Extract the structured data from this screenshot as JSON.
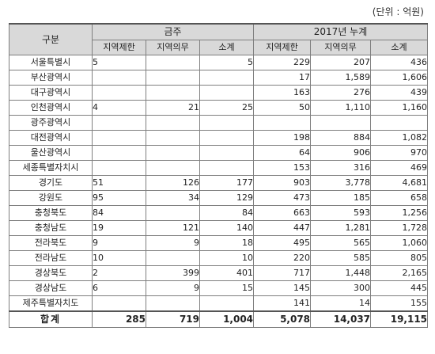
{
  "unit_label": "(단위 : 억원)",
  "headers": {
    "category": "구분",
    "group_current": "금주",
    "group_cumulative": "2017년 누계",
    "sub": [
      "지역제한",
      "지역의무",
      "소계",
      "지역제한",
      "지역의무",
      "소계"
    ]
  },
  "rows": [
    {
      "region": "서울특별시",
      "cells": [
        "5",
        "",
        "5",
        "229",
        "207",
        "436"
      ]
    },
    {
      "region": "부산광역시",
      "cells": [
        "",
        "",
        "",
        "17",
        "1,589",
        "1,606"
      ]
    },
    {
      "region": "대구광역시",
      "cells": [
        "",
        "",
        "",
        "163",
        "276",
        "439"
      ]
    },
    {
      "region": "인천광역시",
      "cells": [
        "4",
        "21",
        "25",
        "50",
        "1,110",
        "1,160"
      ]
    },
    {
      "region": "광주광역시",
      "cells": [
        "",
        "",
        "",
        "",
        "",
        ""
      ]
    },
    {
      "region": "대전광역시",
      "cells": [
        "",
        "",
        "",
        "198",
        "884",
        "1,082"
      ]
    },
    {
      "region": "울산광역시",
      "cells": [
        "",
        "",
        "",
        "64",
        "906",
        "970"
      ]
    },
    {
      "region": "세종특별자치시",
      "cells": [
        "",
        "",
        "",
        "153",
        "316",
        "469"
      ]
    },
    {
      "region": "경기도",
      "cells": [
        "51",
        "126",
        "177",
        "903",
        "3,778",
        "4,681"
      ]
    },
    {
      "region": "강원도",
      "cells": [
        "95",
        "34",
        "129",
        "473",
        "185",
        "658"
      ]
    },
    {
      "region": "충청북도",
      "cells": [
        "84",
        "",
        "84",
        "663",
        "593",
        "1,256"
      ]
    },
    {
      "region": "충청남도",
      "cells": [
        "19",
        "121",
        "140",
        "447",
        "1,281",
        "1,728"
      ]
    },
    {
      "region": "전라북도",
      "cells": [
        "9",
        "9",
        "18",
        "495",
        "565",
        "1,060"
      ]
    },
    {
      "region": "전라남도",
      "cells": [
        "10",
        "",
        "10",
        "220",
        "585",
        "805"
      ]
    },
    {
      "region": "경상북도",
      "cells": [
        "2",
        "399",
        "401",
        "717",
        "1,448",
        "2,165"
      ]
    },
    {
      "region": "경상남도",
      "cells": [
        "6",
        "9",
        "15",
        "145",
        "300",
        "445"
      ]
    },
    {
      "region": "제주특별자치도",
      "cells": [
        "",
        "",
        "",
        "141",
        "14",
        "155"
      ]
    }
  ],
  "total": {
    "region": "합계",
    "cells": [
      "285",
      "719",
      "1,004",
      "5,078",
      "14,037",
      "19,115"
    ]
  }
}
